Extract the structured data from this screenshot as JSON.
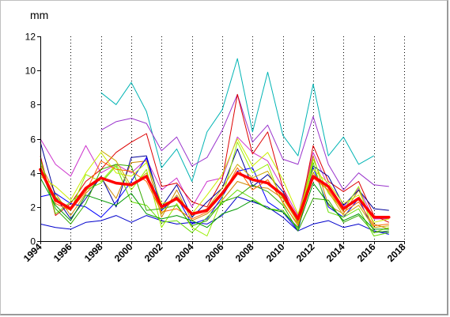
{
  "chart_data": {
    "type": "line",
    "y_unit": "mm",
    "xlim": [
      1994,
      2018
    ],
    "ylim": [
      0,
      12
    ],
    "x_ticks": [
      1994,
      1996,
      1998,
      2000,
      2002,
      2004,
      2006,
      2008,
      2010,
      2012,
      2014,
      2016,
      2018
    ],
    "y_ticks": [
      0,
      2,
      4,
      6,
      8,
      10,
      12
    ],
    "vertical_dotted_gridlines": true,
    "x": [
      1994,
      1995,
      1996,
      1997,
      1998,
      1999,
      2000,
      2001,
      2002,
      2003,
      2004,
      2005,
      2006,
      2007,
      2008,
      2009,
      2010,
      2011,
      2012,
      2013,
      2014,
      2015,
      2016,
      2017
    ],
    "highlight_series": {
      "color": "#ff0000",
      "values": [
        4.2,
        2.4,
        1.9,
        3.1,
        3.7,
        3.4,
        3.3,
        3.8,
        2.0,
        2.5,
        1.6,
        1.8,
        2.8,
        4.0,
        3.6,
        3.4,
        2.7,
        1.3,
        3.8,
        3.2,
        1.9,
        2.5,
        1.4,
        1.4
      ]
    },
    "series": [
      {
        "color": "#00b4b4",
        "values": [
          null,
          null,
          null,
          null,
          8.7,
          8.0,
          9.3,
          7.6,
          4.3,
          5.4,
          3.5,
          6.4,
          7.7,
          10.7,
          6.4,
          9.9,
          6.2,
          5.0,
          9.2,
          5.0,
          6.1,
          4.5,
          5.0,
          null
        ]
      },
      {
        "color": "#9933cc",
        "values": [
          null,
          null,
          null,
          null,
          6.5,
          7.0,
          7.2,
          6.9,
          5.3,
          6.1,
          4.4,
          4.9,
          6.5,
          8.6,
          5.8,
          6.8,
          4.8,
          4.5,
          7.3,
          4.5,
          3.0,
          4.0,
          3.3,
          3.2
        ]
      },
      {
        "color": "#cc33cc",
        "values": [
          6.0,
          4.5,
          3.8,
          5.6,
          4.0,
          4.5,
          4.0,
          4.8,
          3.0,
          3.7,
          2.0,
          3.5,
          3.7,
          6.1,
          5.2,
          4.7,
          3.1,
          1.5,
          5.2,
          3.2,
          2.0,
          3.1,
          1.3,
          1.3
        ]
      },
      {
        "color": "#dd0000",
        "values": [
          5.0,
          1.5,
          2.2,
          3.5,
          4.2,
          5.2,
          5.8,
          6.3,
          3.2,
          3.4,
          2.3,
          2.0,
          3.6,
          8.6,
          5.1,
          6.4,
          3.1,
          1.0,
          5.6,
          3.5,
          2.9,
          3.5,
          1.5,
          1.1
        ]
      },
      {
        "color": "#cc8800",
        "values": [
          4.5,
          2.8,
          1.5,
          2.8,
          3.7,
          2.5,
          4.6,
          4.7,
          1.4,
          3.0,
          1.2,
          1.6,
          2.4,
          3.5,
          3.2,
          3.1,
          2.5,
          1.2,
          5.0,
          2.1,
          1.6,
          3.0,
          1.0,
          0.7
        ]
      },
      {
        "color": "#000099",
        "values": [
          5.8,
          2.6,
          1.3,
          2.5,
          3.8,
          2.0,
          4.9,
          5.0,
          2.0,
          3.3,
          1.4,
          2.3,
          3.1,
          5.4,
          3.2,
          3.9,
          2.9,
          1.2,
          4.4,
          3.8,
          2.1,
          3.0,
          1.9,
          1.8
        ]
      },
      {
        "color": "#0000ff",
        "values": [
          2.6,
          2.8,
          2.2,
          2.0,
          1.4,
          2.3,
          3.5,
          4.9,
          1.8,
          2.6,
          1.0,
          1.3,
          2.6,
          4.1,
          4.3,
          2.3,
          1.7,
          0.6,
          4.3,
          2.0,
          1.4,
          2.5,
          0.6,
          0.4
        ]
      },
      {
        "color": "#0000cc",
        "values": [
          1.0,
          0.8,
          0.7,
          1.1,
          1.2,
          1.5,
          1.1,
          1.5,
          1.2,
          1.0,
          1.1,
          1.0,
          1.5,
          2.6,
          2.3,
          2.0,
          1.4,
          0.6,
          1.0,
          1.2,
          0.8,
          1.0,
          0.6,
          0.5
        ]
      },
      {
        "color": "#66dd00",
        "values": [
          4.8,
          1.6,
          2.3,
          3.0,
          3.4,
          4.4,
          2.3,
          2.1,
          1.1,
          1.2,
          0.5,
          1.4,
          2.2,
          3.0,
          2.5,
          1.9,
          1.8,
          0.7,
          4.6,
          1.7,
          1.4,
          1.9,
          0.3,
          0.5
        ]
      },
      {
        "color": "#99ee00",
        "values": [
          4.0,
          2.6,
          1.8,
          3.9,
          3.5,
          4.5,
          3.0,
          4.2,
          0.8,
          2.2,
          0.8,
          0.3,
          2.5,
          5.8,
          4.0,
          4.5,
          2.2,
          1.0,
          4.8,
          2.8,
          1.8,
          3.2,
          0.5,
          0.8
        ]
      },
      {
        "color": "#ccee00",
        "values": [
          3.8,
          3.2,
          2.4,
          4.0,
          5.2,
          4.0,
          3.8,
          4.6,
          2.2,
          2.4,
          1.6,
          2.7,
          3.9,
          6.0,
          4.4,
          5.2,
          3.6,
          1.6,
          4.2,
          3.4,
          2.2,
          2.7,
          1.1,
          1.3
        ]
      },
      {
        "color": "#33aa00",
        "values": [
          4.3,
          1.9,
          1.0,
          2.2,
          4.2,
          4.5,
          4.4,
          1.8,
          1.9,
          2.1,
          0.9,
          1.2,
          2.3,
          2.6,
          3.3,
          2.9,
          2.1,
          0.6,
          2.5,
          2.4,
          1.1,
          1.5,
          0.5,
          0.6
        ]
      },
      {
        "color": "#009900",
        "values": [
          3.7,
          2.1,
          1.2,
          2.7,
          2.4,
          2.1,
          2.8,
          1.6,
          1.3,
          1.5,
          1.2,
          0.8,
          1.6,
          1.9,
          2.4,
          1.9,
          1.7,
          0.8,
          3.4,
          2.2,
          1.2,
          1.6,
          0.7,
          0.7
        ]
      },
      {
        "color": "#ff6600",
        "values": [
          4.4,
          2.2,
          1.8,
          2.9,
          4.7,
          4.2,
          4.1,
          3.5,
          1.7,
          1.9,
          1.3,
          1.7,
          2.7,
          4.3,
          3.0,
          3.6,
          2.3,
          0.9,
          3.7,
          3.0,
          1.7,
          2.3,
          0.9,
          1.0
        ]
      },
      {
        "color": "#ccaa00",
        "values": [
          null,
          null,
          null,
          null,
          5.3,
          4.7,
          3.2,
          4.0,
          1.6,
          2.7,
          1.5,
          1.9,
          3.1,
          4.5,
          3.7,
          4.1,
          2.5,
          1.1,
          4.0,
          2.9,
          1.5,
          2.1,
          0.8,
          0.9
        ]
      }
    ]
  }
}
